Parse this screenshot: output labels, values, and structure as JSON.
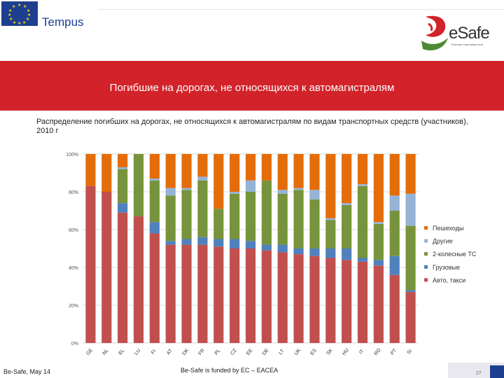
{
  "header": {
    "program_name": "Tempus",
    "brand_name": "eSafe",
    "brand_tagline": "Promote road safety here"
  },
  "banner": {
    "title": "Погибшие на дорогах, не относящихся к автомагистралям"
  },
  "subtitle": "Распределение погибших на дорогах, не относящихся к автомагистралям по видам транспортных средств (участников), 2010 г",
  "chart_data": {
    "type": "bar",
    "stacked": true,
    "percent": true,
    "categories": [
      "GE",
      "NL",
      "EL",
      "LU",
      "FI",
      "AT",
      "DK",
      "FR",
      "PL",
      "CZ",
      "EE",
      "DE",
      "LT",
      "UK",
      "ES",
      "SK",
      "HU",
      "IT",
      "RO",
      "PT",
      "SI"
    ],
    "ylim": [
      0,
      100
    ],
    "yticks": [
      "0%",
      "20%",
      "40%",
      "60%",
      "80%",
      "100%"
    ],
    "grid": true,
    "legend_position": "right",
    "series": [
      {
        "name": "Авто, такси",
        "color": "#c0504d",
        "values": [
          83,
          80,
          69,
          67,
          58,
          52,
          52,
          52,
          51,
          50,
          50,
          49,
          48,
          47,
          46,
          45,
          44,
          43,
          41,
          36,
          27
        ]
      },
      {
        "name": "Грузовые",
        "color": "#4f81bd",
        "values": [
          0,
          0,
          5,
          0,
          6,
          2,
          3,
          4,
          4,
          5,
          4,
          3,
          4,
          3,
          4,
          5,
          6,
          2,
          3,
          10,
          1
        ]
      },
      {
        "name": "2-колесные ТС",
        "color": "#77933c",
        "values": [
          0,
          0,
          18,
          33,
          22,
          24,
          26,
          30,
          16,
          24,
          26,
          34,
          27,
          31,
          26,
          15,
          23,
          38,
          19,
          24,
          34
        ]
      },
      {
        "name": "Другие",
        "color": "#95b3d7",
        "values": [
          0,
          0,
          1,
          0,
          1,
          4,
          1,
          2,
          0,
          1,
          6,
          0,
          2,
          1,
          5,
          1,
          1,
          1,
          1,
          8,
          17
        ]
      },
      {
        "name": "Пешеходы",
        "color": "#e46c0a",
        "values": [
          17,
          20,
          7,
          0,
          13,
          18,
          18,
          12,
          29,
          20,
          14,
          14,
          19,
          18,
          19,
          34,
          26,
          16,
          36,
          22,
          21
        ]
      }
    ]
  },
  "footer": {
    "left": "Be-Safe, May 14",
    "center": "Be-Safe is funded by EC – EACEA",
    "page": "27"
  }
}
